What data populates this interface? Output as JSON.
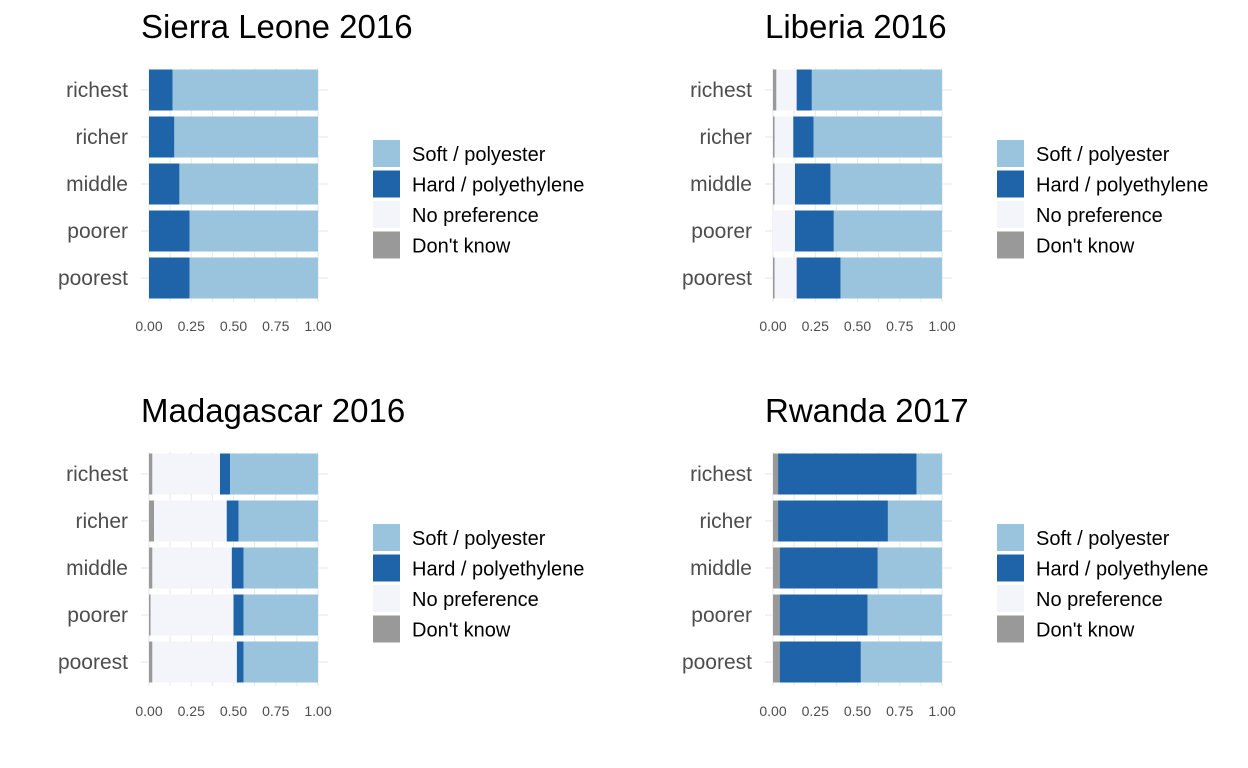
{
  "colors": {
    "Soft / polyester": "#9ac3dd",
    "Hard / polyethylene": "#1f64a8",
    "No preference": "#f4f5fb",
    "Don't know": "#999999"
  },
  "legend": [
    "Soft / polyester",
    "Hard / polyethylene",
    "No preference",
    "Don't know"
  ],
  "chart_data": [
    {
      "type": "bar",
      "orientation": "horizontal",
      "stacked": true,
      "title": "Sierra Leone 2016",
      "categories": [
        "richest",
        "richer",
        "middle",
        "poorer",
        "poorest"
      ],
      "xlim": [
        0,
        1
      ],
      "xticks": [
        "0.00",
        "0.25",
        "0.50",
        "0.75",
        "1.00"
      ],
      "series": [
        {
          "name": "Don't know",
          "values": [
            0,
            0,
            0,
            0,
            0
          ]
        },
        {
          "name": "No preference",
          "values": [
            0,
            0,
            0,
            0,
            0
          ]
        },
        {
          "name": "Hard / polyethylene",
          "values": [
            0.14,
            0.15,
            0.18,
            0.24,
            0.24
          ]
        },
        {
          "name": "Soft / polyester",
          "values": [
            0.86,
            0.85,
            0.82,
            0.76,
            0.76
          ]
        }
      ]
    },
    {
      "type": "bar",
      "orientation": "horizontal",
      "stacked": true,
      "title": "Liberia 2016",
      "categories": [
        "richest",
        "richer",
        "middle",
        "poorer",
        "poorest"
      ],
      "xlim": [
        0,
        1
      ],
      "xticks": [
        "0.00",
        "0.25",
        "0.50",
        "0.75",
        "1.00"
      ],
      "series": [
        {
          "name": "Don't know",
          "values": [
            0.02,
            0.01,
            0.01,
            0,
            0.01
          ]
        },
        {
          "name": "No preference",
          "values": [
            0.12,
            0.11,
            0.12,
            0.13,
            0.13
          ]
        },
        {
          "name": "Hard / polyethylene",
          "values": [
            0.09,
            0.12,
            0.21,
            0.23,
            0.26
          ]
        },
        {
          "name": "Soft / polyester",
          "values": [
            0.77,
            0.76,
            0.66,
            0.64,
            0.6
          ]
        }
      ]
    },
    {
      "type": "bar",
      "orientation": "horizontal",
      "stacked": true,
      "title": "Madagascar 2016",
      "categories": [
        "richest",
        "richer",
        "middle",
        "poorer",
        "poorest"
      ],
      "xlim": [
        0,
        1
      ],
      "xticks": [
        "0.00",
        "0.25",
        "0.50",
        "0.75",
        "1.00"
      ],
      "series": [
        {
          "name": "Don't know",
          "values": [
            0.02,
            0.03,
            0.02,
            0.01,
            0.02
          ]
        },
        {
          "name": "No preference",
          "values": [
            0.4,
            0.43,
            0.47,
            0.49,
            0.5
          ]
        },
        {
          "name": "Hard / polyethylene",
          "values": [
            0.06,
            0.07,
            0.07,
            0.06,
            0.04
          ]
        },
        {
          "name": "Soft / polyester",
          "values": [
            0.52,
            0.47,
            0.44,
            0.44,
            0.44
          ]
        }
      ]
    },
    {
      "type": "bar",
      "orientation": "horizontal",
      "stacked": true,
      "title": "Rwanda 2017",
      "categories": [
        "richest",
        "richer",
        "middle",
        "poorer",
        "poorest"
      ],
      "xlim": [
        0,
        1
      ],
      "xticks": [
        "0.00",
        "0.25",
        "0.50",
        "0.75",
        "1.00"
      ],
      "series": [
        {
          "name": "Don't know",
          "values": [
            0.03,
            0.03,
            0.04,
            0.04,
            0.04
          ]
        },
        {
          "name": "No preference",
          "values": [
            0,
            0,
            0,
            0,
            0
          ]
        },
        {
          "name": "Hard / polyethylene",
          "values": [
            0.82,
            0.65,
            0.58,
            0.52,
            0.48
          ]
        },
        {
          "name": "Soft / polyester",
          "values": [
            0.15,
            0.32,
            0.38,
            0.44,
            0.48
          ]
        }
      ]
    }
  ]
}
